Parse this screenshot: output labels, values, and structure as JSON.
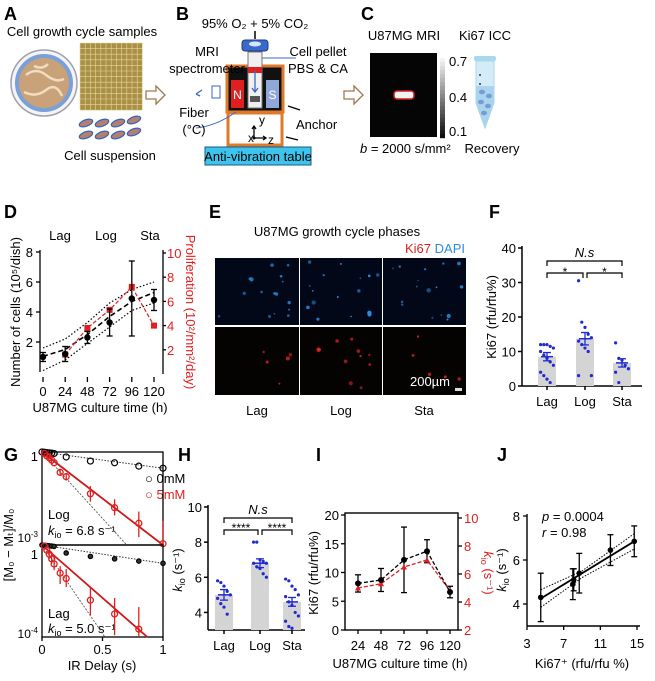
{
  "panels": {
    "A": {
      "label": "A",
      "title": "Cell growth cycle samples",
      "caption": "Cell suspension"
    },
    "B": {
      "label": "B",
      "gas": "95% O₂ + 5% CO₂",
      "mri_line1": "MRI",
      "mri_line2": "spectrometer",
      "pellet_line1": "Cell pellet",
      "pellet_line2": "PBS & CA",
      "fiber_line1": "Fiber",
      "fiber_line2": "(°C)",
      "anchor": "Anchor",
      "magnet_n": "N",
      "magnet_s": "S",
      "axis_x": "x",
      "axis_y": "y",
      "axis_z": "z",
      "table": "Anti-vibration table"
    },
    "C": {
      "label": "C",
      "mri_title": "U87MG MRI",
      "icc_title": "Ki67 ICC",
      "colorbar_ticks": [
        "0.7",
        "0.4",
        "0.1"
      ],
      "b_label": "b",
      "b_value": " = 2000 s/mm²",
      "recovery": "Recovery"
    },
    "D": {
      "label": "D"
    },
    "E": {
      "label": "E",
      "title": "U87MG growth cycle phases",
      "stain_ki67": "Ki67",
      "stain_dapi": "DAPI",
      "scale_bar": "200µm",
      "columns": [
        "Lag",
        "Log",
        "Sta"
      ],
      "colors": {
        "ki67": "#e02020",
        "dapi": "#2a8ee0"
      }
    },
    "F": {
      "label": "F"
    },
    "G": {
      "label": "G"
    },
    "H": {
      "label": "H"
    },
    "I": {
      "label": "I"
    },
    "J": {
      "label": "J"
    }
  },
  "chart_data": [
    {
      "panel": "D",
      "type": "line",
      "phase_labels": [
        "Lag",
        "Log",
        "Sta"
      ],
      "xlabel": "U87MG culture time (h)",
      "ylabel": "Number of cells (10⁵/dish)",
      "ylabel_right": "Proliferation (10²/mm²/day)",
      "xlim": [
        0,
        120
      ],
      "ylim": [
        0,
        8
      ],
      "ylim_right": [
        0,
        10
      ],
      "x_ticks": [
        0,
        24,
        48,
        72,
        96,
        120
      ],
      "y_ticks": [
        2,
        4,
        6,
        8
      ],
      "y_right_ticks": [
        2,
        4,
        6,
        8,
        10
      ],
      "series": [
        {
          "axis": "left",
          "color": "#000000",
          "x": [
            0,
            24,
            48,
            72,
            96,
            120
          ],
          "y": [
            1.0,
            1.2,
            2.3,
            3.3,
            4.9,
            4.8
          ],
          "err": [
            0.3,
            0.5,
            0.4,
            0.9,
            2.5,
            0.7
          ]
        },
        {
          "axis": "right",
          "color": "#e02020",
          "x": [
            24,
            48,
            72,
            96,
            120
          ],
          "y": [
            1.6,
            3.8,
            5.3,
            7.2,
            4.0
          ]
        }
      ],
      "fit": {
        "mean": [
          [
            0,
            1.05
          ],
          [
            24,
            1.5
          ],
          [
            48,
            2.5
          ],
          [
            72,
            3.7
          ],
          [
            96,
            4.7
          ],
          [
            120,
            5.3
          ]
        ],
        "upper": [
          [
            0,
            1.6
          ],
          [
            24,
            2.2
          ],
          [
            48,
            3.3
          ],
          [
            72,
            4.6
          ],
          [
            96,
            5.5
          ],
          [
            120,
            6.0
          ]
        ],
        "lower": [
          [
            0,
            0.1
          ],
          [
            24,
            0.8
          ],
          [
            48,
            1.9
          ],
          [
            72,
            3.0
          ],
          [
            96,
            4.1
          ],
          [
            120,
            4.6
          ]
        ]
      }
    },
    {
      "panel": "F",
      "type": "bar",
      "ylabel": "Ki67 (rfu/rfu%)",
      "ylim": [
        0,
        40
      ],
      "y_ticks": [
        0,
        10,
        20,
        30,
        40
      ],
      "categories": [
        "Lag",
        "Log",
        "Sta"
      ],
      "values": [
        8.5,
        13.7,
        6.7
      ],
      "sem": [
        1.2,
        1.8,
        1.2
      ],
      "points": [
        [
          12,
          12,
          12,
          11.5,
          11,
          10,
          9,
          8,
          7,
          6,
          4,
          3,
          2,
          1
        ],
        [
          30.5,
          18.5,
          17,
          15,
          14,
          13,
          12,
          11,
          10,
          3,
          3
        ],
        [
          12.5,
          8,
          7.5,
          6,
          5,
          4,
          1
        ]
      ],
      "significance": [
        {
          "pair": [
            "Lag",
            "Sta"
          ],
          "label": "N.s"
        },
        {
          "pair": [
            "Lag",
            "Log"
          ],
          "label": "*"
        },
        {
          "pair": [
            "Log",
            "Sta"
          ],
          "label": "*"
        }
      ],
      "bar_color": "#d4d4d4",
      "point_color": "#1f2ad0"
    },
    {
      "panel": "G",
      "type": "scatter",
      "xlabel": "IR Delay (s)",
      "ylabel": "[M₀ − Mₜ]/M₀",
      "xlim": [
        0,
        1
      ],
      "x_ticks": [
        "0",
        "0.5",
        "1"
      ],
      "y_scale": "log",
      "legend": [
        {
          "name": "0mM",
          "color": "#000000"
        },
        {
          "name": "5mM",
          "color": "#e02020"
        }
      ],
      "legend_position": "top-right",
      "subplots": [
        {
          "phase": "Log",
          "k_symbol": "k",
          "k_sub": "io",
          "k_value": " = 6.8 s⁻¹",
          "ylim": [
            0.001,
            1
          ],
          "y_tick_top": "1",
          "y_tick_bottom_base": "10",
          "y_tick_bottom_exp": "-3",
          "series": [
            {
              "name": "0mM",
              "x": [
                0,
                0.02,
                0.04,
                0.06,
                0.08,
                0.1,
                0.2,
                0.4,
                0.6,
                0.8,
                1.0
              ],
              "y": [
                1,
                0.98,
                0.96,
                0.94,
                0.92,
                0.9,
                0.69,
                0.51,
                0.45,
                0.35,
                0.3
              ]
            },
            {
              "name": "5mM",
              "x": [
                0.02,
                0.04,
                0.06,
                0.08,
                0.1,
                0.15,
                0.2,
                0.4,
                0.6,
                0.8,
                1.0
              ],
              "y": [
                0.9,
                0.75,
                0.65,
                0.55,
                0.45,
                0.22,
                0.16,
                0.045,
                0.016,
                0.005,
                0.0011
              ],
              "ylow": [
                null,
                null,
                null,
                null,
                null,
                0.18,
                0.12,
                0.025,
                0.009,
                0.0018,
                0.001
              ],
              "yhigh": [
                null,
                null,
                null,
                null,
                null,
                0.27,
                0.21,
                0.08,
                0.03,
                0.012,
                0.006
              ]
            }
          ],
          "fit_5mM": [
            [
              0,
              1
            ],
            [
              1,
              0.001
            ]
          ],
          "fit_0mM": [
            [
              0,
              1
            ],
            [
              1,
              0.3
            ]
          ],
          "initial_slope": [
            [
              0,
              1
            ],
            [
              0.7,
              0.001
            ]
          ]
        },
        {
          "phase": "Lag",
          "k_symbol": "k",
          "k_sub": "io",
          "k_value": " = 5.0 s⁻¹",
          "ylim": [
            0.0001,
            1
          ],
          "y_tick_top": "1",
          "y_tick_bottom_base": "10",
          "y_tick_bottom_exp": "-4",
          "series": [
            {
              "name": "0mM",
              "x": [
                0,
                0.02,
                0.04,
                0.06,
                0.08,
                0.1,
                0.2,
                0.4,
                0.6,
                0.8,
                1.0
              ],
              "y": [
                1,
                0.97,
                0.95,
                0.92,
                0.9,
                0.87,
                0.45,
                0.32,
                0.25,
                0.2,
                0.16
              ]
            },
            {
              "name": "5mM",
              "x": [
                0.02,
                0.04,
                0.06,
                0.08,
                0.1,
                0.15,
                0.2,
                0.4,
                0.6,
                0.8
              ],
              "y": [
                0.9,
                0.6,
                0.4,
                0.25,
                0.15,
                0.06,
                0.035,
                0.004,
                0.001,
                0.00022
              ],
              "ylow": [
                null,
                null,
                0.25,
                0.15,
                0.08,
                0.02,
                0.015,
                0.0009,
                0.00012,
                0.0001
              ],
              "yhigh": [
                null,
                null,
                0.6,
                0.4,
                0.3,
                0.12,
                0.09,
                0.015,
                0.005,
                0.002
              ]
            }
          ],
          "fit_5mM": [
            [
              0,
              1
            ],
            [
              0.87,
              0.0001
            ]
          ],
          "fit_0mM": [
            [
              0,
              1
            ],
            [
              1,
              0.16
            ]
          ],
          "initial_slope": [
            [
              0,
              1
            ],
            [
              0.52,
              0.0001
            ]
          ]
        }
      ]
    },
    {
      "panel": "H",
      "type": "bar",
      "ylabel_symbol": "k",
      "ylabel_sub": "io",
      "ylabel_unit": " (s⁻¹)",
      "ylim": [
        3,
        10
      ],
      "y_ticks": [
        4,
        6,
        8,
        10
      ],
      "categories": [
        "Lag",
        "Log",
        "Sta"
      ],
      "values": [
        5.0,
        6.8,
        4.6
      ],
      "sem": [
        0.3,
        0.25,
        0.25
      ],
      "points": [
        [
          5.8,
          5.7,
          5.5,
          5.2,
          5.0,
          4.8,
          4.5,
          4.3,
          3.9
        ],
        [
          8.0,
          8.0,
          7.0,
          6.9,
          6.8,
          6.8,
          6.6,
          6.5,
          6.2,
          6.0
        ],
        [
          5.9,
          5.8,
          5.5,
          5.3,
          5.0,
          4.9,
          4.6,
          4.4,
          4.0,
          3.8,
          3.5,
          3.2,
          3.1
        ]
      ],
      "significance": [
        {
          "pair": [
            "Lag",
            "Sta"
          ],
          "label": "N.s"
        },
        {
          "pair": [
            "Lag",
            "Log"
          ],
          "label": "****"
        },
        {
          "pair": [
            "Log",
            "Sta"
          ],
          "label": "****"
        }
      ],
      "bar_color": "#d4d4d4",
      "point_color": "#1f2ad0"
    },
    {
      "panel": "I",
      "type": "line",
      "xlabel": "U87MG culture time (h)",
      "ylabel": "Ki67 (rfu/rfu%)",
      "ylabel_right_symbol": "k",
      "ylabel_right_sub": "io",
      "ylabel_right_unit": " (s⁻¹)",
      "xlim": [
        24,
        120
      ],
      "ylim": [
        0,
        20
      ],
      "ylim_right": [
        2,
        10
      ],
      "x_ticks": [
        24,
        48,
        72,
        96,
        120
      ],
      "y_ticks": [
        0,
        5,
        10,
        15,
        20
      ],
      "y_right_ticks": [
        2,
        4,
        6,
        8,
        10
      ],
      "series": [
        {
          "axis": "left",
          "color": "#000000",
          "x": [
            24,
            48,
            72,
            96,
            120
          ],
          "y": [
            8.1,
            8.7,
            12.2,
            13.7,
            6.6
          ],
          "err": [
            1.5,
            2.0,
            5.7,
            2.0,
            1.0
          ]
        },
        {
          "axis": "right",
          "color": "#e02020",
          "x": [
            24,
            48,
            72,
            96,
            120
          ],
          "y": [
            5.0,
            5.3,
            6.5,
            7.0,
            4.8
          ]
        }
      ]
    },
    {
      "panel": "J",
      "type": "scatter",
      "xlabel": "Ki67⁺ (rfu/rfu %)",
      "ylabel_symbol": "k",
      "ylabel_sub": "io",
      "ylabel_unit": " (s⁻¹)",
      "xlim": [
        3,
        15
      ],
      "ylim": [
        3,
        8
      ],
      "x_ticks": [
        3,
        7,
        11,
        15
      ],
      "y_ticks": [
        4,
        6,
        8
      ],
      "stats": {
        "p_symbol": "p",
        "p_value": " = 0.0004",
        "r_symbol": "r",
        "r_value": " = 0.98"
      },
      "x": [
        4.5,
        8.0,
        8.1,
        8.7,
        12.1,
        14.7
      ],
      "y": [
        4.3,
        4.9,
        5.1,
        5.4,
        6.45,
        6.85
      ],
      "err": [
        1.1,
        0.7,
        0.5,
        0.9,
        0.7,
        0.7
      ],
      "fit": [
        [
          4.5,
          4.25
        ],
        [
          14.7,
          6.85
        ]
      ],
      "ci_upper": [
        [
          4.5,
          4.65
        ],
        [
          9,
          5.5
        ],
        [
          14.7,
          7.2
        ]
      ],
      "ci_lower": [
        [
          4.5,
          3.85
        ],
        [
          9,
          5.2
        ],
        [
          14.7,
          6.5
        ]
      ]
    }
  ]
}
